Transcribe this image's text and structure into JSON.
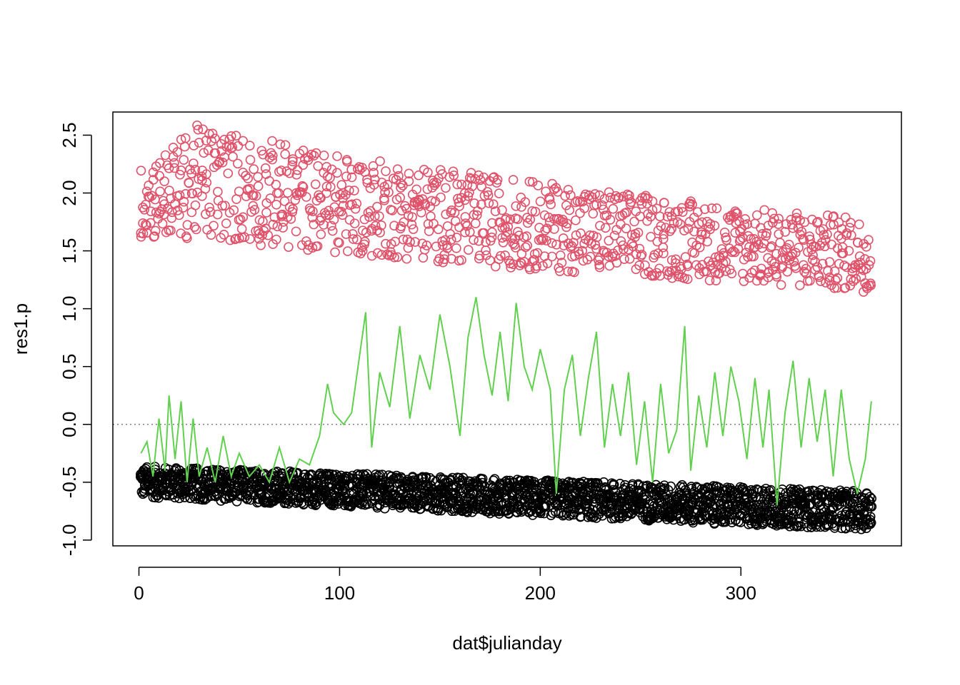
{
  "chart_data": {
    "type": "scatter",
    "title": "",
    "xlabel": "dat$julianday",
    "ylabel": "res1.p",
    "xlim": [
      -13,
      380
    ],
    "ylim": [
      -1.05,
      2.7
    ],
    "x_ticks": [
      0,
      100,
      200,
      300
    ],
    "x_tick_labels": [
      "0",
      "100",
      "200",
      "300"
    ],
    "y_ticks": [
      -1.0,
      -0.5,
      0.0,
      0.5,
      1.0,
      1.5,
      2.0,
      2.5
    ],
    "y_tick_labels": [
      "-1.0",
      "-0.5",
      "0.0",
      "0.5",
      "1.0",
      "1.5",
      "2.0",
      "2.5"
    ],
    "grid": false,
    "legend": "none",
    "reference_line": {
      "y": 0,
      "style": "dotted",
      "color": "#808080"
    },
    "colors": {
      "upper": "#DF536B",
      "lower": "#000000",
      "line": "#61D04F"
    },
    "series": [
      {
        "type": "scatter",
        "color": "#DF536B",
        "trend": {
          "x": [
            0,
            30,
            100,
            200,
            300,
            365
          ],
          "y_min": [
            1.6,
            1.6,
            1.47,
            1.33,
            1.22,
            1.14
          ],
          "y_max": [
            2.2,
            2.6,
            2.33,
            2.1,
            1.88,
            1.78
          ]
        }
      },
      {
        "type": "scatter",
        "color": "#000000",
        "trend": {
          "x": [
            0,
            100,
            200,
            300,
            365
          ],
          "y_min": [
            -0.63,
            -0.71,
            -0.79,
            -0.87,
            -0.91
          ],
          "y_max": [
            -0.36,
            -0.42,
            -0.48,
            -0.54,
            -0.58
          ]
        }
      },
      {
        "type": "line",
        "color": "#61D04F",
        "x": [
          1,
          4,
          7,
          10,
          13,
          15,
          18,
          21,
          24,
          27,
          30,
          34,
          38,
          42,
          46,
          50,
          55,
          60,
          65,
          70,
          75,
          80,
          85,
          90,
          94,
          97,
          102,
          106,
          110,
          113,
          116,
          120,
          125,
          130,
          135,
          140,
          145,
          150,
          155,
          160,
          164,
          168,
          172,
          176,
          180,
          184,
          188,
          192,
          196,
          200,
          205,
          208,
          212,
          216,
          220,
          224,
          228,
          232,
          236,
          240,
          244,
          248,
          252,
          256,
          260,
          264,
          268,
          272,
          275,
          279,
          283,
          287,
          291,
          295,
          299,
          303,
          307,
          311,
          314,
          318,
          322,
          326,
          330,
          334,
          338,
          342,
          346,
          350,
          354,
          358,
          362,
          365
        ],
        "y": [
          -0.25,
          -0.15,
          -0.45,
          0.05,
          -0.4,
          0.25,
          -0.3,
          0.2,
          -0.5,
          0.05,
          -0.45,
          -0.2,
          -0.5,
          -0.1,
          -0.45,
          -0.25,
          -0.45,
          -0.35,
          -0.5,
          -0.2,
          -0.5,
          -0.3,
          -0.35,
          -0.1,
          0.35,
          0.1,
          0.0,
          0.1,
          0.6,
          0.97,
          -0.2,
          0.45,
          0.15,
          0.85,
          0.05,
          0.6,
          0.3,
          0.95,
          0.5,
          -0.1,
          0.75,
          1.1,
          0.6,
          0.25,
          0.8,
          0.2,
          1.05,
          0.5,
          0.3,
          0.65,
          0.3,
          -0.6,
          0.3,
          0.6,
          -0.1,
          0.4,
          0.8,
          -0.2,
          0.35,
          -0.1,
          0.45,
          -0.35,
          0.2,
          -0.5,
          0.35,
          -0.25,
          -0.05,
          0.85,
          -0.4,
          0.25,
          -0.2,
          0.45,
          -0.1,
          0.5,
          0.2,
          -0.3,
          0.4,
          -0.2,
          0.3,
          -0.7,
          0.1,
          0.55,
          -0.2,
          0.4,
          -0.15,
          0.3,
          -0.45,
          0.3,
          -0.3,
          -0.6,
          -0.3,
          0.2
        ]
      }
    ]
  }
}
